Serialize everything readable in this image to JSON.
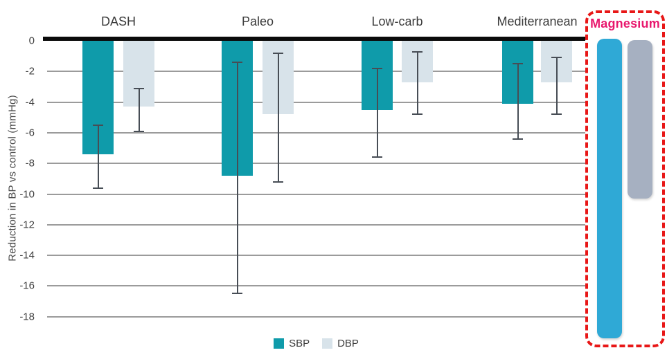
{
  "chart_data": {
    "type": "bar",
    "title": "",
    "xlabel": "",
    "ylabel": "Reduction in BP vs control (mmHg)",
    "ylim": [
      0,
      -19
    ],
    "yticks": [
      0,
      -2,
      -4,
      -6,
      -8,
      -10,
      -12,
      -14,
      -16,
      -18
    ],
    "grid": true,
    "legend_position": "bottom-center",
    "categories": [
      "DASH",
      "Paleo",
      "Low-carb",
      "Mediterranean"
    ],
    "series": [
      {
        "name": "SBP",
        "color": "#0f9baa",
        "values": [
          -7.4,
          -8.8,
          -4.5,
          -4.1
        ],
        "error_top": [
          -5.5,
          -1.4,
          -1.8,
          -1.5
        ],
        "error_bottom": [
          -9.6,
          -16.5,
          -7.6,
          -6.4
        ]
      },
      {
        "name": "DBP",
        "color": "#d8e3ea",
        "values": [
          -4.3,
          -4.8,
          -2.7,
          -2.7
        ],
        "error_top": [
          -3.1,
          -0.8,
          -0.7,
          -1.1
        ],
        "error_bottom": [
          -5.9,
          -9.2,
          -4.8,
          -4.8
        ]
      }
    ],
    "highlight_group": {
      "label": "Magnesium",
      "label_color": "#e8176d",
      "border_color": "#e81717",
      "bars": [
        {
          "name": "SBP",
          "color": "#2fa9d6",
          "value": -19.4,
          "clipped_below_axis": true
        },
        {
          "name": "DBP",
          "color": "#a6b0c1",
          "value": -10.3,
          "clipped_below_axis": false
        }
      ]
    },
    "annotations": {
      "zero_line_color": "#0b0b0b",
      "gridline_color": "#8a8a8a",
      "error_bar_color": "#474d55"
    }
  }
}
